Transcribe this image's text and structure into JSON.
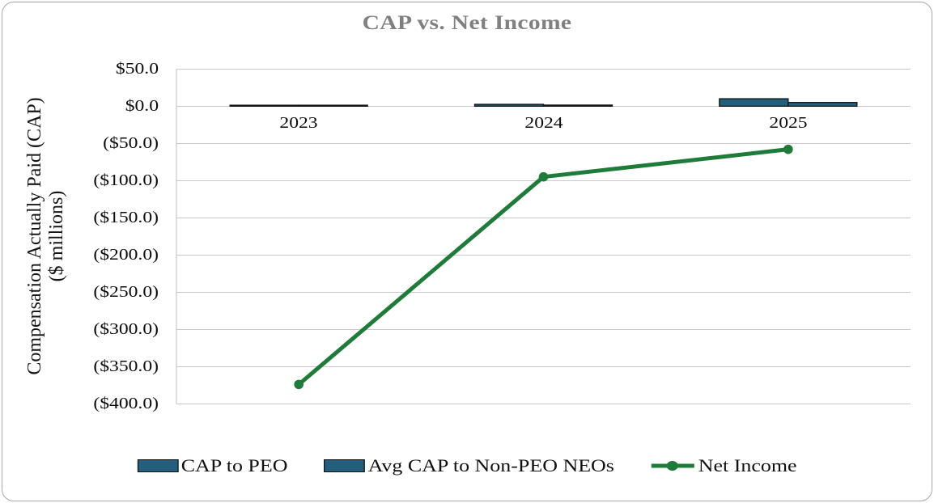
{
  "chart_data": {
    "type": "combo",
    "title": "CAP vs. Net Income",
    "title_color": "#808080",
    "categories": [
      "2023",
      "2024",
      "2025"
    ],
    "series": [
      {
        "name": "CAP to PEO",
        "type": "bar",
        "color": "#245e7d",
        "border_color": "#111111",
        "values": [
          0.4,
          2.5,
          10.0
        ]
      },
      {
        "name": "Avg CAP to Non-PEO NEOs",
        "type": "bar",
        "color": "#245e7d",
        "border_color": "#111111",
        "values": [
          0.3,
          1.5,
          5.0
        ]
      },
      {
        "name": "Net Income",
        "type": "line",
        "color": "#1f7b3a",
        "values": [
          -374,
          -95,
          -58
        ]
      }
    ],
    "ylabel_line1": "Compensation Actually Paid (CAP)",
    "ylabel_line2": "($ millions)",
    "ylim": [
      -400,
      50
    ],
    "ytick_interval": 50,
    "yticks": [
      {
        "label": "$50.0",
        "value": 50
      },
      {
        "label": "$0.0",
        "value": 0
      },
      {
        "label": "($50.0)",
        "value": -50
      },
      {
        "label": "($100.0)",
        "value": -100
      },
      {
        "label": "($150.0)",
        "value": -150
      },
      {
        "label": "($200.0)",
        "value": -200
      },
      {
        "label": "($250.0)",
        "value": -250
      },
      {
        "label": "($300.0)",
        "value": -300
      },
      {
        "label": "($350.0)",
        "value": -350
      },
      {
        "label": "($400.0)",
        "value": -400
      }
    ],
    "grid": "horizontal",
    "legend_position": "bottom",
    "colors": {
      "gridline": "#c9c9c9",
      "axis_line": "#bfbfbf",
      "frame_border": "#a6a6a6"
    }
  }
}
